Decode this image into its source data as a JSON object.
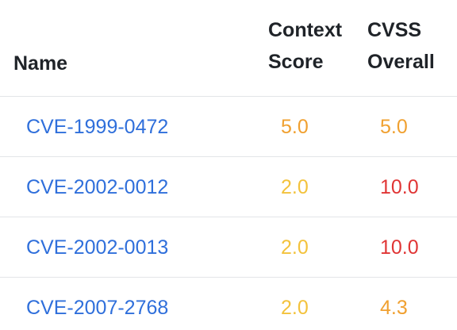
{
  "headers": {
    "name": "Name",
    "context_score": [
      "Context",
      "Score"
    ],
    "cvss_overall": [
      "CVSS",
      "Overall"
    ]
  },
  "colors": {
    "link": "#2f6fdb",
    "medium": "#f0a030",
    "low": "#f3c23c",
    "high": "#e03535"
  },
  "rows": [
    {
      "name": "CVE-1999-0472",
      "context_score": "5.0",
      "context_color": "medium",
      "cvss_overall": "5.0",
      "cvss_color": "medium"
    },
    {
      "name": "CVE-2002-0012",
      "context_score": "2.0",
      "context_color": "low",
      "cvss_overall": "10.0",
      "cvss_color": "high"
    },
    {
      "name": "CVE-2002-0013",
      "context_score": "2.0",
      "context_color": "low",
      "cvss_overall": "10.0",
      "cvss_color": "high"
    },
    {
      "name": "CVE-2007-2768",
      "context_score": "2.0",
      "context_color": "low",
      "cvss_overall": "4.3",
      "cvss_color": "medium"
    }
  ]
}
